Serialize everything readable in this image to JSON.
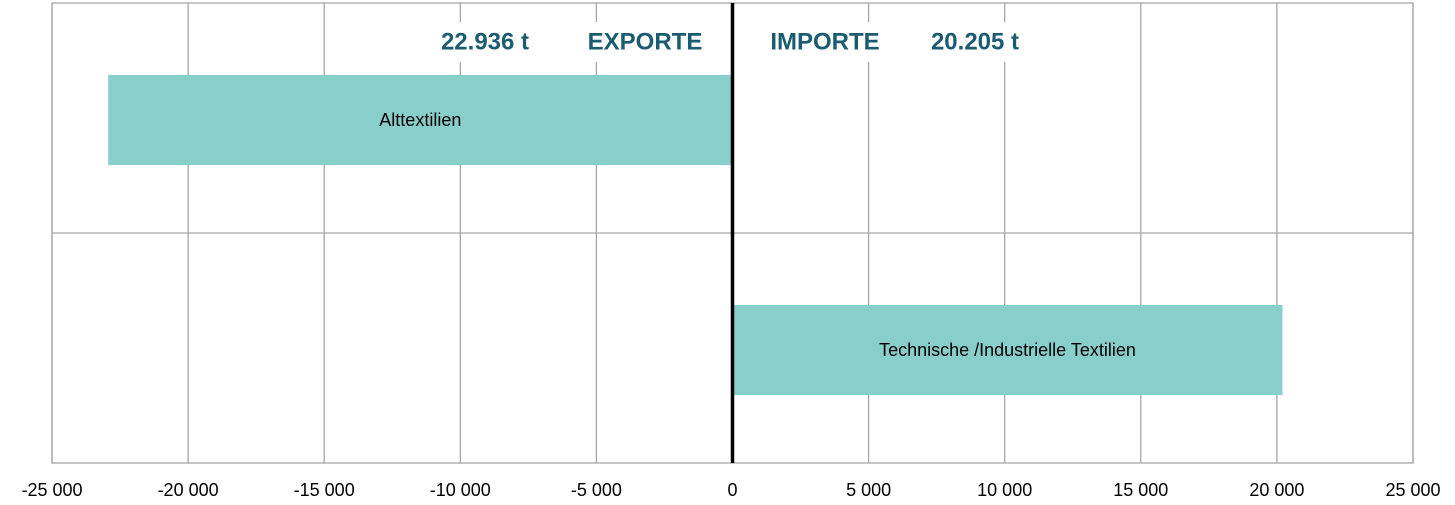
{
  "chart_data": {
    "type": "hbar",
    "categories": [
      "Alttextilien",
      "Technische /Industrielle Textilien"
    ],
    "values": [
      -22936,
      20205
    ],
    "color": "#88cfcc",
    "xlim": [
      -25000,
      25000
    ],
    "xticks": [
      {
        "value": -25000,
        "label": "-25 000"
      },
      {
        "value": -20000,
        "label": "-20 000"
      },
      {
        "value": -15000,
        "label": "-15 000"
      },
      {
        "value": -10000,
        "label": "-10 000"
      },
      {
        "value": -5000,
        "label": "-5 000"
      },
      0,
      {
        "value": 5000,
        "label": "5 000"
      },
      {
        "value": 10000,
        "label": "10 000"
      },
      {
        "value": 15000,
        "label": "15 000"
      },
      {
        "value": 20000,
        "label": "20 000"
      },
      {
        "value": 25000,
        "label": "25 000"
      }
    ],
    "grid": true,
    "annotations": [
      "22.936 t",
      "EXPORTE",
      "IMPORTE",
      "20.205 t"
    ]
  }
}
